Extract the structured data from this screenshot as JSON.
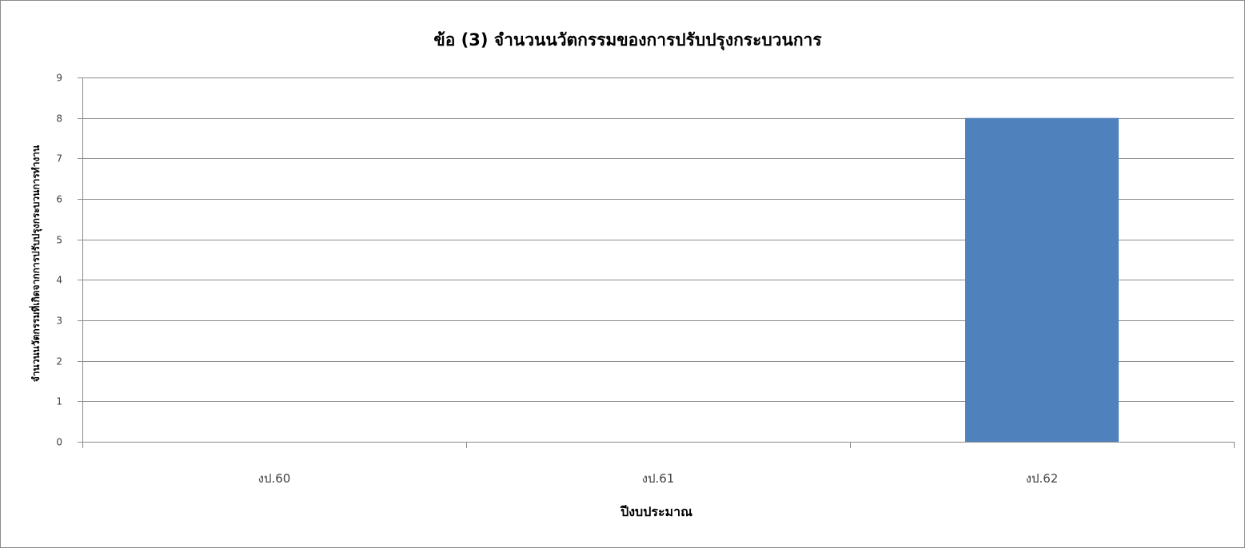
{
  "chart_data": {
    "type": "bar",
    "title": "ข้อ (3) จำนวนนวัตกรรมของการปรับปรุงกระบวนการ",
    "xlabel": "ปีงบประมาณ",
    "ylabel": "จำนวนนวัตกรรมที่เกิดจากการปรับปรุงกระบวนการทำงาน",
    "categories": [
      "งป.60",
      "งป.61",
      "งป.62"
    ],
    "values": [
      0,
      0,
      8
    ],
    "ylim": [
      0,
      9
    ],
    "yticks": [
      "0",
      "1",
      "2",
      "3",
      "4",
      "5",
      "6",
      "7",
      "8",
      "9"
    ],
    "grid": true,
    "legend": "none",
    "bar_color": "#4f81bd"
  }
}
